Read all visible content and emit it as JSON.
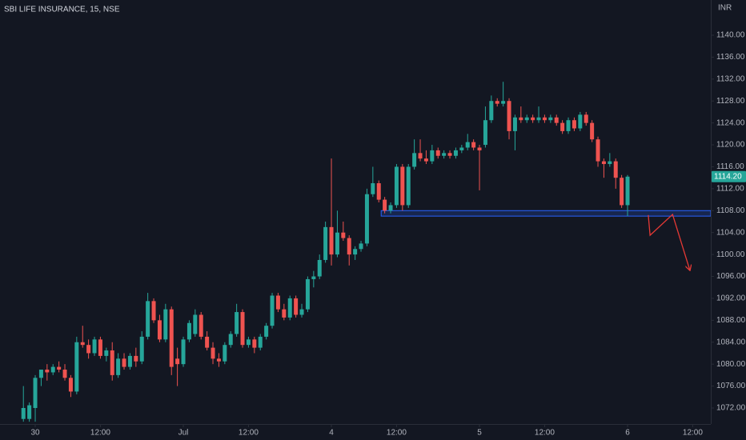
{
  "chart_data": {
    "type": "candlestick",
    "title": "SBI LIFE INSURANCE, 15, NSE",
    "currency": "INR",
    "up_color": "#26a69a",
    "down_color": "#ef5350",
    "xlim": [
      -5.95,
      114.05
    ],
    "ylim": [
      1069.08,
      1146.42
    ],
    "xticks": [
      {
        "value": 0,
        "label": "30"
      },
      {
        "value": 11,
        "label": "12:00"
      },
      {
        "value": 25,
        "label": "Jul"
      },
      {
        "value": 36,
        "label": "12:00"
      },
      {
        "value": 50,
        "label": "4"
      },
      {
        "value": 61,
        "label": "12:00"
      },
      {
        "value": 75,
        "label": "5"
      },
      {
        "value": 86,
        "label": "12:00"
      },
      {
        "value": 100,
        "label": "6"
      },
      {
        "value": 111,
        "label": "12:00"
      }
    ],
    "yticks": [
      {
        "value": 1072,
        "label": "1072.00"
      },
      {
        "value": 1076,
        "label": "1076.00"
      },
      {
        "value": 1080,
        "label": "1080.00"
      },
      {
        "value": 1084,
        "label": "1084.00"
      },
      {
        "value": 1088,
        "label": "1088.00"
      },
      {
        "value": 1092,
        "label": "1092.00"
      },
      {
        "value": 1096,
        "label": "1096.00"
      },
      {
        "value": 1100,
        "label": "1100.00"
      },
      {
        "value": 1104,
        "label": "1104.00"
      },
      {
        "value": 1108,
        "label": "1108.00"
      },
      {
        "value": 1112,
        "label": "1112.00"
      },
      {
        "value": 1116,
        "label": "1116.00"
      },
      {
        "value": 1120,
        "label": "1120.00"
      },
      {
        "value": 1124,
        "label": "1124.00"
      },
      {
        "value": 1128,
        "label": "1128.00"
      },
      {
        "value": 1132,
        "label": "1132.00"
      },
      {
        "value": 1136,
        "label": "1136.00"
      },
      {
        "value": 1140,
        "label": "1140.00"
      }
    ],
    "last_price": {
      "value": 1114.2,
      "label": "1114.20"
    },
    "zone": {
      "x_start": 58.4,
      "price": [
        1107,
        1108
      ],
      "color": "#2962ff"
    },
    "arrow": {
      "x": [
        103.5,
        103.8,
        107.6,
        110.5
      ],
      "y": [
        1107.2,
        1103.5,
        1107.3,
        1097.2
      ],
      "color": "#e53935"
    },
    "x": [
      -2,
      -1,
      0,
      1,
      2,
      3,
      4,
      5,
      6,
      7,
      8,
      9,
      10,
      11,
      12,
      13,
      14,
      15,
      16,
      17,
      18,
      19,
      20,
      21,
      22,
      23,
      24,
      25,
      26,
      27,
      28,
      29,
      30,
      31,
      32,
      33,
      34,
      35,
      36,
      37,
      38,
      39,
      40,
      41,
      42,
      43,
      44,
      45,
      46,
      47,
      48,
      49,
      50,
      51,
      52,
      53,
      54,
      55,
      56,
      57,
      58,
      59,
      60,
      61,
      62,
      63,
      64,
      65,
      66,
      67,
      68,
      69,
      70,
      71,
      72,
      73,
      74,
      75,
      76,
      77,
      78,
      79,
      80,
      81,
      82,
      83,
      84,
      85,
      86,
      87,
      88,
      89,
      90,
      91,
      92,
      93,
      94,
      95,
      96,
      97,
      98,
      99,
      100
    ],
    "ohlc": [
      [
        1070,
        1076,
        1069.5,
        1072
      ],
      [
        1070,
        1073,
        1069.5,
        1072.5
      ],
      [
        1072,
        1078,
        1069.5,
        1077.5
      ],
      [
        1077.5,
        1079,
        1076,
        1079
      ],
      [
        1079,
        1080,
        1077,
        1078.5
      ],
      [
        1078.5,
        1080,
        1078,
        1079.5
      ],
      [
        1079.5,
        1080.5,
        1078.5,
        1079
      ],
      [
        1079,
        1080,
        1077,
        1077.5
      ],
      [
        1077.5,
        1078,
        1074,
        1075
      ],
      [
        1075,
        1085,
        1074.5,
        1084
      ],
      [
        1084,
        1087,
        1083,
        1083.5
      ],
      [
        1083.5,
        1084.5,
        1081,
        1082
      ],
      [
        1082,
        1085,
        1081.5,
        1084.5
      ],
      [
        1084.5,
        1085,
        1081,
        1081.5
      ],
      [
        1081.5,
        1083,
        1080.5,
        1082.5
      ],
      [
        1082.5,
        1084,
        1077,
        1078
      ],
      [
        1078,
        1082,
        1077.5,
        1081
      ],
      [
        1081,
        1082,
        1079,
        1079.5
      ],
      [
        1079.5,
        1082,
        1079,
        1081.5
      ],
      [
        1081.5,
        1083,
        1079.5,
        1080.5
      ],
      [
        1080.5,
        1086,
        1080,
        1085
      ],
      [
        1085,
        1093,
        1084.5,
        1091.5
      ],
      [
        1091.5,
        1092,
        1087.5,
        1088
      ],
      [
        1088,
        1089,
        1084,
        1084.5
      ],
      [
        1084.5,
        1091,
        1084,
        1090
      ],
      [
        1090,
        1090.5,
        1078,
        1079.5
      ],
      [
        1081,
        1083,
        1076,
        1080
      ],
      [
        1080,
        1085,
        1079.5,
        1084.5
      ],
      [
        1084.5,
        1088,
        1084,
        1087.5
      ],
      [
        1085.5,
        1090,
        1085,
        1089
      ],
      [
        1089,
        1089.5,
        1084.5,
        1085
      ],
      [
        1085,
        1086,
        1082.5,
        1083
      ],
      [
        1083,
        1084,
        1080,
        1081
      ],
      [
        1081,
        1082,
        1079.5,
        1080.5
      ],
      [
        1080.5,
        1084,
        1080,
        1083.5
      ],
      [
        1083.5,
        1086,
        1083,
        1085.5
      ],
      [
        1085.5,
        1091,
        1085,
        1089.5
      ],
      [
        1089.5,
        1090,
        1083,
        1083.5
      ],
      [
        1083.5,
        1085,
        1083,
        1084.5
      ],
      [
        1084.5,
        1085,
        1082,
        1083
      ],
      [
        1083,
        1085.5,
        1082.5,
        1085
      ],
      [
        1085,
        1087.5,
        1084.5,
        1087
      ],
      [
        1087,
        1093,
        1086.5,
        1092.5
      ],
      [
        1092.5,
        1093,
        1089.5,
        1090
      ],
      [
        1090,
        1091,
        1088,
        1088.5
      ],
      [
        1088.5,
        1092.5,
        1088,
        1092
      ],
      [
        1092,
        1092.5,
        1088.5,
        1089
      ],
      [
        1089,
        1091,
        1088.5,
        1090
      ],
      [
        1090,
        1096,
        1089.5,
        1095.5
      ],
      [
        1095.5,
        1097,
        1094,
        1096
      ],
      [
        1096,
        1100,
        1095.5,
        1099
      ],
      [
        1099,
        1106,
        1098.5,
        1105
      ],
      [
        1105,
        1117.5,
        1098,
        1100
      ],
      [
        1100,
        1108,
        1099.5,
        1104
      ],
      [
        1104,
        1106,
        1102.5,
        1103
      ],
      [
        1103,
        1103.5,
        1098,
        1100
      ],
      [
        1100,
        1101.5,
        1099,
        1101
      ],
      [
        1101,
        1102.5,
        1100.5,
        1102
      ],
      [
        1102,
        1112,
        1101.5,
        1111
      ],
      [
        1111,
        1116,
        1110.5,
        1113
      ],
      [
        1113,
        1113.5,
        1109.5,
        1110
      ],
      [
        1110,
        1110.5,
        1107.5,
        1108
      ],
      [
        1108,
        1109.5,
        1107.5,
        1109
      ],
      [
        1109,
        1116.5,
        1108.5,
        1116
      ],
      [
        1116,
        1116.5,
        1108,
        1109
      ],
      [
        1109,
        1116.5,
        1108.5,
        1116
      ],
      [
        1116,
        1121,
        1115.5,
        1118.5
      ],
      [
        1118.5,
        1121,
        1117,
        1117.5
      ],
      [
        1117.5,
        1119,
        1116.5,
        1117
      ],
      [
        1117,
        1120,
        1116.5,
        1119
      ],
      [
        1119,
        1119.5,
        1117.5,
        1118
      ],
      [
        1118,
        1119,
        1117.5,
        1118.5
      ],
      [
        1118.5,
        1119,
        1117.5,
        1118
      ],
      [
        1118,
        1119.5,
        1117.5,
        1119
      ],
      [
        1119,
        1120,
        1118.5,
        1119.5
      ],
      [
        1119.5,
        1122,
        1119,
        1120.5
      ],
      [
        1120.5,
        1121,
        1119,
        1119.5
      ],
      [
        1119.5,
        1120,
        1111.7,
        1119
      ],
      [
        1120,
        1127,
        1119.5,
        1124.5
      ],
      [
        1124.5,
        1129,
        1124,
        1128
      ],
      [
        1128,
        1128.5,
        1127,
        1127.5
      ],
      [
        1127.5,
        1131.5,
        1127,
        1128
      ],
      [
        1128,
        1128.5,
        1121,
        1122.5
      ],
      [
        1122.5,
        1125.5,
        1119,
        1125
      ],
      [
        1125,
        1127,
        1124,
        1124.5
      ],
      [
        1124.5,
        1125.5,
        1124,
        1125
      ],
      [
        1125,
        1125.5,
        1124,
        1124.5
      ],
      [
        1124.5,
        1127,
        1124,
        1125
      ],
      [
        1125,
        1125.5,
        1124,
        1124.5
      ],
      [
        1124.5,
        1125.5,
        1124,
        1125
      ],
      [
        1125,
        1125.5,
        1123.5,
        1124
      ],
      [
        1124,
        1124.5,
        1122,
        1122.5
      ],
      [
        1122.5,
        1125,
        1122,
        1124.5
      ],
      [
        1124.5,
        1125,
        1122.5,
        1123
      ],
      [
        1123,
        1126,
        1122.5,
        1125.5
      ],
      [
        1125.5,
        1126,
        1123.5,
        1124
      ],
      [
        1124,
        1124.5,
        1120.5,
        1121
      ],
      [
        1121,
        1121.5,
        1116,
        1117
      ],
      [
        1117,
        1117.5,
        1114,
        1116.5
      ],
      [
        1116.5,
        1118.5,
        1116,
        1117
      ],
      [
        1117,
        1117.5,
        1112,
        1114
      ],
      [
        1114,
        1114.5,
        1108.5,
        1109
      ],
      [
        1109,
        1114.5,
        1107,
        1114.2
      ]
    ]
  }
}
